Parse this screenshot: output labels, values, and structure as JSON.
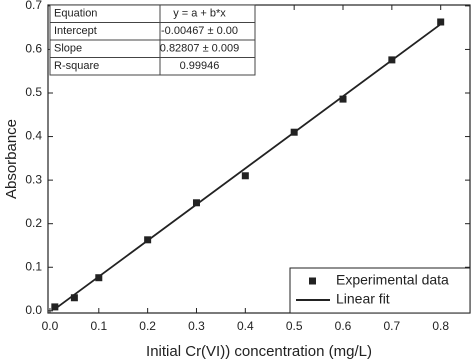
{
  "chart_data": {
    "type": "scatter",
    "x_label": "Initial Cr(VI)) concentration (mg/L)",
    "y_label": "Absorbance",
    "xlim": [
      -0.004,
      0.86
    ],
    "ylim": [
      -0.005,
      0.702
    ],
    "xticks": [
      {
        "value": 0,
        "label": "0.0"
      },
      0.1,
      0.2,
      0.3,
      0.4,
      0.5,
      0.6,
      0.7,
      0.8
    ],
    "yticks": [
      {
        "value": 0,
        "label": "0.0"
      },
      0.1,
      0.2,
      0.3,
      0.4,
      0.5,
      0.6,
      0.7
    ],
    "legend": "lower right",
    "series": [
      {
        "name": "Experimental data",
        "type": "scatter",
        "color": "#222222",
        "x": [
          0.01,
          0.05,
          0.1,
          0.2,
          0.3,
          0.4,
          0.5,
          0.6,
          0.7,
          0.8
        ],
        "values": [
          0.009,
          0.03,
          0.076,
          0.163,
          0.248,
          0.31,
          0.41,
          0.486,
          0.576,
          0.663
        ]
      },
      {
        "name": "Linear fit",
        "type": "line",
        "color": "#222222",
        "x": [
          0.01,
          0.8
        ],
        "values": [
          0.004,
          0.658
        ]
      }
    ],
    "table": [
      [
        "Equation",
        "y = a + b*x"
      ],
      [
        "Intercept",
        "-0.00467 ± 0.00"
      ],
      [
        "Slope",
        "0.82807 ± 0.009"
      ],
      [
        "R-square",
        "0.99946"
      ]
    ]
  }
}
